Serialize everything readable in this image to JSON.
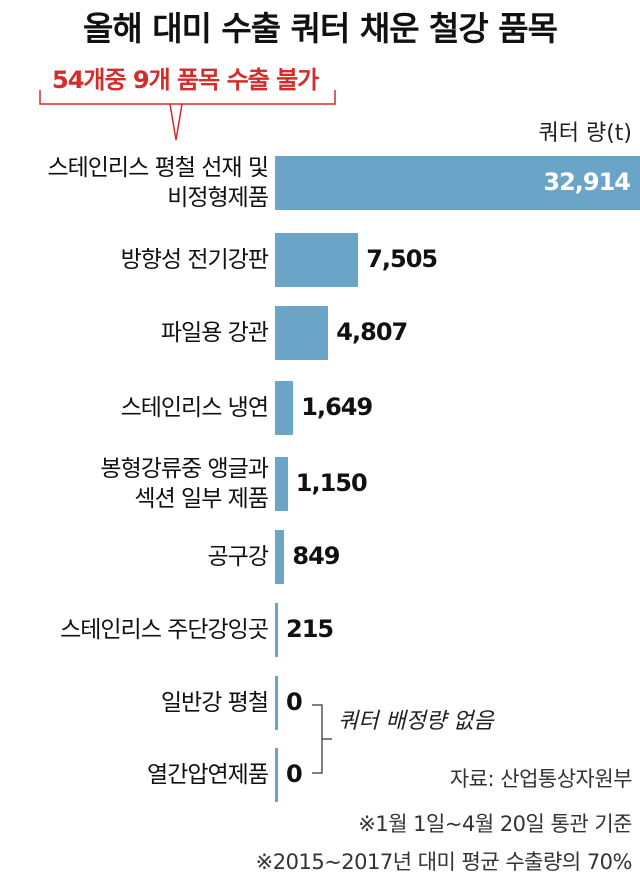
{
  "chart_data": {
    "type": "hbar",
    "title": "올해 대미 수출 쿼터 채운 철강 품목",
    "subtitle": "54개중 9개 품목 수출 불가",
    "unit_label": "쿼터 량(t)",
    "categories": [
      "스테인리스 평철 선재 및\n비정형제품",
      "방향성 전기강판",
      "파일용 강관",
      "스테인리스 냉연",
      "봉형강류중 앵글과\n섹션 일부 제품",
      "공구강",
      "스테인리스 주단강잉곳",
      "일반강 평철",
      "열간압연제품"
    ],
    "values": [
      32914,
      7505,
      4807,
      1649,
      1150,
      849,
      215,
      0,
      0
    ],
    "value_labels": [
      "32,914",
      "7,505",
      "4,807",
      "1,649",
      "1,150",
      "849",
      "215",
      "0",
      "0"
    ],
    "color": "#6aa4c6",
    "annotation": "쿼터 배정량 없음",
    "source": "자료: 산업통상자원부",
    "footnotes": [
      "※1월 1일~4월 20일 통관 기준",
      "※2015~2017년 대미 평균 수출량의 70%"
    ]
  }
}
